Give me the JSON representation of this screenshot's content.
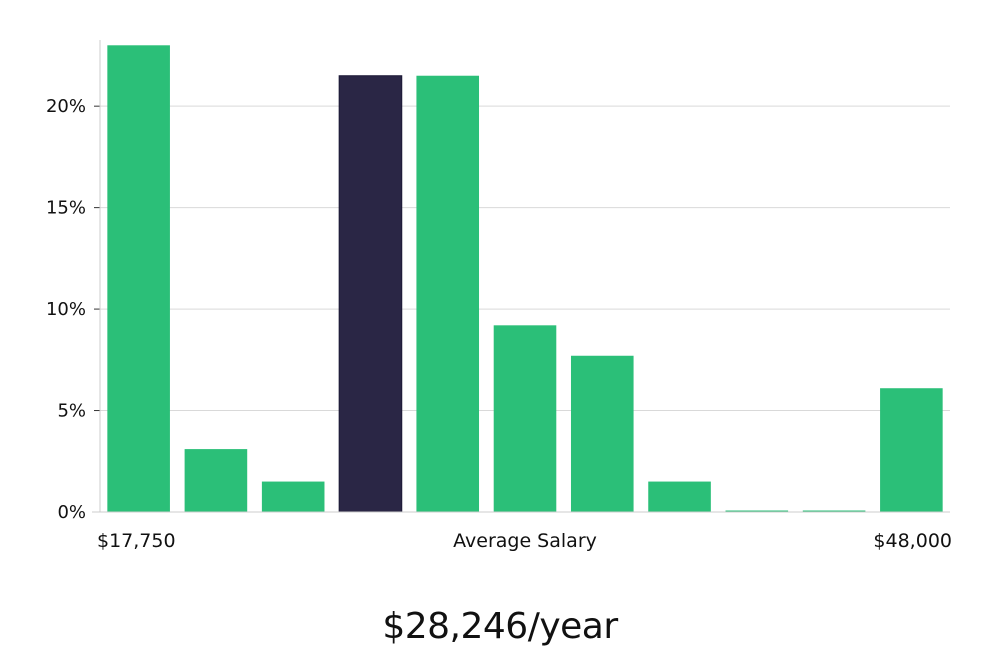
{
  "chart_data": {
    "type": "bar",
    "categories": [
      "1",
      "2",
      "3",
      "4",
      "5",
      "6",
      "7",
      "8",
      "9",
      "10",
      "11"
    ],
    "values": [
      23.0,
      3.1,
      1.5,
      21.5,
      21.5,
      9.2,
      7.7,
      1.5,
      0.0,
      0.0,
      6.1
    ],
    "highlight_index": 3,
    "ylim": [
      0,
      24
    ],
    "yticks": [
      0,
      5,
      10,
      15,
      20
    ],
    "ytick_labels": [
      "0%",
      "5%",
      "10%",
      "15%",
      "20%"
    ],
    "x_min_label": "$17,750",
    "x_center_label": "Average Salary",
    "x_max_label": "$48,000",
    "grid": true,
    "colors": {
      "bar": "#2bbf78",
      "highlight": "#2a2645",
      "grid": "#d9d9d9",
      "axis": "#cccccc"
    }
  },
  "summary": {
    "salary_text": "$28,246/year"
  }
}
